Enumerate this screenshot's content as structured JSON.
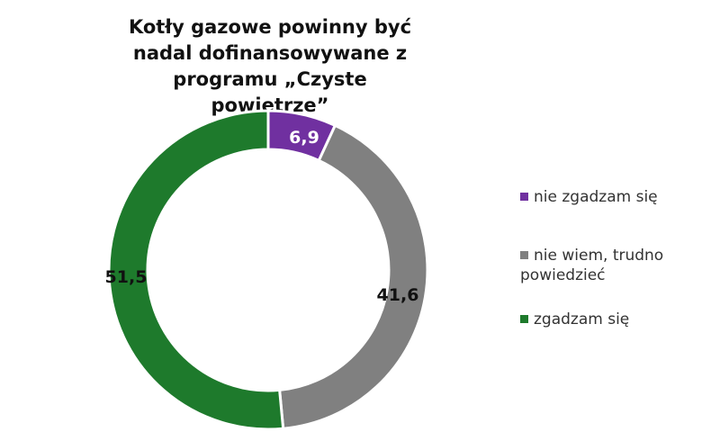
{
  "chart_data": {
    "type": "pie",
    "donut": true,
    "title": "Kotły gazowe powinny być nadal dofinansowywane z programu „Czyste powietrze”",
    "series": [
      {
        "name": "nie zgadzam się",
        "value": 6.9,
        "label": "6,9",
        "color": "#7030a0"
      },
      {
        "name": "nie wiem, trudno powiedzieć",
        "value": 41.6,
        "label": "41,6",
        "color": "#808080"
      },
      {
        "name": "zgadzam się",
        "value": 51.5,
        "label": "51,5",
        "color": "#1e7a2c"
      }
    ],
    "legend": "right"
  }
}
